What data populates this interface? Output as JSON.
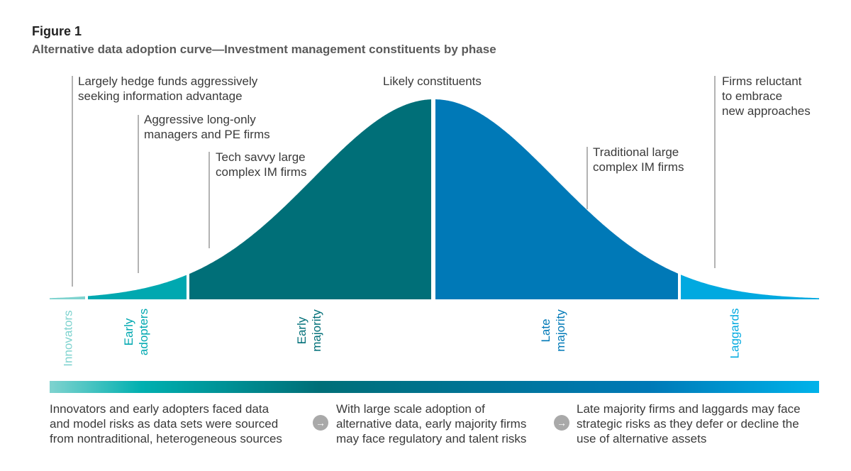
{
  "figure_label": "Figure 1",
  "figure_title": "Alternative data adoption curve—Investment management constituents by phase",
  "center_label": "Likely constituents",
  "callouts": [
    {
      "id": "innovators",
      "lines": [
        "Largely hedge funds aggressively",
        "seeking information advantage"
      ]
    },
    {
      "id": "early-adopters",
      "lines": [
        "Aggressive long-only",
        "managers and PE firms"
      ]
    },
    {
      "id": "early-majority",
      "lines": [
        "Tech savvy large",
        "complex IM firms"
      ]
    },
    {
      "id": "late-majority",
      "lines": [
        "Traditional large",
        "complex IM firms"
      ]
    },
    {
      "id": "laggards",
      "lines": [
        "Firms reluctant",
        "to embrace",
        "new approaches"
      ]
    }
  ],
  "phases": [
    {
      "id": "innovators",
      "lines": [
        "Innovators"
      ],
      "color": "#7fd3cf"
    },
    {
      "id": "early-adopters",
      "lines": [
        "Early",
        "adopters"
      ],
      "color": "#00a8b0"
    },
    {
      "id": "early-majority",
      "lines": [
        "Early",
        "majority"
      ],
      "color": "#006f78"
    },
    {
      "id": "late-majority",
      "lines": [
        "Late",
        "majority"
      ],
      "color": "#0079b7"
    },
    {
      "id": "laggards",
      "lines": [
        "Laggards"
      ],
      "color": "#00a9e0"
    }
  ],
  "bottom_notes": [
    [
      "Innovators and early adopters faced data",
      "and model risks as data sets were sourced",
      "from nontraditional, heterogeneous sources"
    ],
    [
      "With large scale adoption of",
      "alternative data, early majority firms",
      "may face regulatory and talent risks"
    ],
    [
      "Late majority firms and laggards may face",
      "strategic risks as they defer or decline the",
      "use of alternative assets"
    ]
  ],
  "arrow_glyph": "→",
  "colors": {
    "gradient": [
      "#7fd3cf",
      "#00b0b0",
      "#006f78",
      "#0079b7",
      "#00b3ea"
    ],
    "leader_line": "#b3b3b3",
    "arrow_bg": "#a9a9a9"
  }
}
